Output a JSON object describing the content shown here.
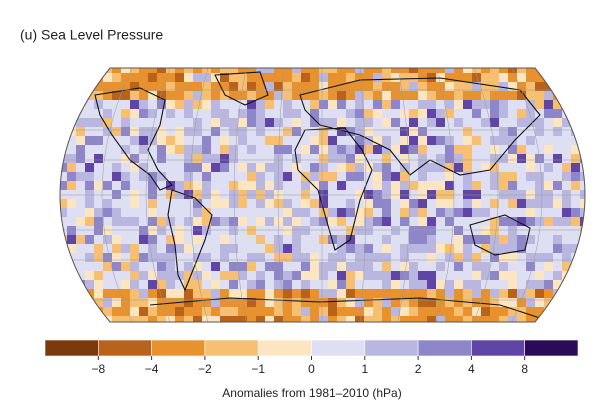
{
  "title": "(u) Sea Level Pressure",
  "legend": {
    "colors": [
      "#7a3a0c",
      "#b8621c",
      "#e8922f",
      "#f6bf72",
      "#fce6c2",
      "#dedff2",
      "#b9b7e0",
      "#8f86c9",
      "#5f45a6",
      "#2b0b58"
    ],
    "ticks": [
      {
        "value": -8,
        "label": "−8"
      },
      {
        "value": -4,
        "label": "−4"
      },
      {
        "value": -2,
        "label": "−2"
      },
      {
        "value": -1,
        "label": "−1"
      },
      0,
      1,
      2,
      4,
      8
    ],
    "label": "Anomalies from 1981–2010 (hPa)"
  }
}
